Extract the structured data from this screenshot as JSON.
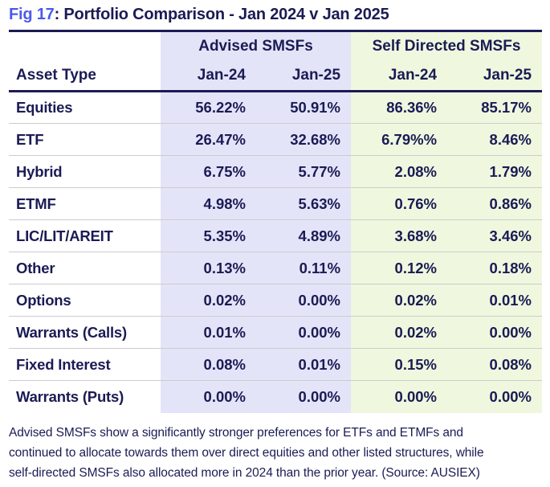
{
  "title": {
    "fig": "Fig 17",
    "rest": ": Portfolio Comparison - Jan 2024 v Jan 2025"
  },
  "table_header": {
    "asset_type": "Asset Type",
    "groups": [
      {
        "label": "Advised SMSFs",
        "cols": [
          "Jan-24",
          "Jan-25"
        ]
      },
      {
        "label": "Self Directed SMSFs",
        "cols": [
          "Jan-24",
          "Jan-25"
        ]
      }
    ]
  },
  "chart_data": {
    "type": "table",
    "title": "Fig 17: Portfolio Comparison - Jan 2024 v Jan 2025",
    "categories": [
      "Equities",
      "ETF",
      "Hybrid",
      "ETMF",
      "LIC/LIT/AREIT",
      "Other",
      "Options",
      "Warrants (Calls)",
      "Fixed Interest",
      "Warrants (Puts)"
    ],
    "series": [
      {
        "name": "Advised SMSFs Jan-24",
        "values": [
          "56.22%",
          "26.47%",
          "6.75%",
          "4.98%",
          "5.35%",
          "0.13%",
          "0.02%",
          "0.01%",
          "0.08%",
          "0.00%"
        ]
      },
      {
        "name": "Advised SMSFs Jan-25",
        "values": [
          "50.91%",
          "32.68%",
          "5.77%",
          "5.63%",
          "4.89%",
          "0.11%",
          "0.00%",
          "0.00%",
          "0.01%",
          "0.00%"
        ]
      },
      {
        "name": "Self Directed SMSFs Jan-24",
        "values": [
          "86.36%",
          "6.79%%",
          "2.08%",
          "0.76%",
          "3.68%",
          "0.12%",
          "0.02%",
          "0.02%",
          "0.15%",
          "0.00%"
        ]
      },
      {
        "name": "Self Directed SMSFs Jan-25",
        "values": [
          "85.17%",
          "8.46%",
          "1.79%",
          "0.86%",
          "3.46%",
          "0.18%",
          "0.01%",
          "0.00%",
          "0.08%",
          "0.00%"
        ]
      }
    ],
    "layout": {
      "grid": "horizontal row dividers",
      "group_shading": [
        "Advised SMSFs",
        "Self Directed SMSFs"
      ]
    }
  },
  "footnote_lines": [
    "Advised SMSFs show a significantly stronger preferences for ETFs and ETMFs and",
    "continued to allocate towards them over direct equities and other listed structures, while",
    "self-directed SMSFs also allocated more in 2024 than the prior year. (Source: AUSIEX)"
  ],
  "colors": {
    "accent_blue": "#4b5aee",
    "navy_text": "#1b1b55",
    "advised_bg": "#e4e4f8",
    "self_directed_bg": "#eff8de",
    "row_divider": "#cccccc"
  }
}
